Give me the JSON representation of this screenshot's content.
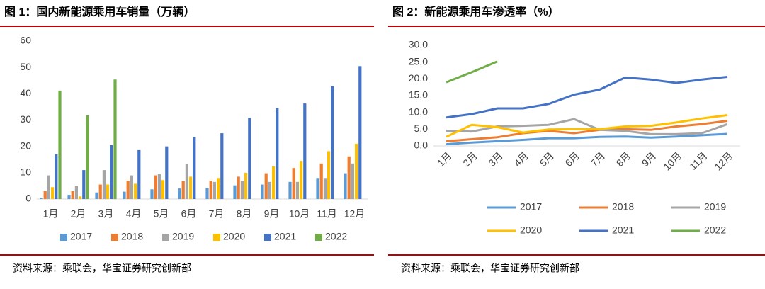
{
  "chart_data": [
    {
      "type": "bar",
      "title": "图 1：国内新能源乘用车销量（万辆）",
      "source": "资料来源：乘联会，华宝证券研究创新部",
      "categories": [
        "1月",
        "2月",
        "3月",
        "4月",
        "5月",
        "6月",
        "7月",
        "8月",
        "9月",
        "10月",
        "11月",
        "12月"
      ],
      "series": [
        {
          "name": "2017",
          "color": "#5b9bd5",
          "values": [
            0.5,
            1.6,
            2.5,
            2.8,
            3.7,
            4,
            4.2,
            5.2,
            5.5,
            6.5,
            8,
            9.8
          ]
        },
        {
          "name": "2018",
          "color": "#ed7d31",
          "values": [
            3,
            3,
            5.5,
            7,
            9,
            6.8,
            7,
            8.5,
            9.8,
            11.8,
            13.5,
            16.2
          ]
        },
        {
          "name": "2019",
          "color": "#a5a5a5",
          "values": [
            9,
            5,
            11,
            9,
            9.5,
            13.2,
            6.5,
            7,
            6.5,
            6.5,
            8,
            13.5
          ]
        },
        {
          "name": "2020",
          "color": "#ffc000",
          "values": [
            4.5,
            1,
            5.5,
            5.8,
            7.2,
            8.5,
            8,
            10,
            12.4,
            14.5,
            18.2,
            21
          ]
        },
        {
          "name": "2021",
          "color": "#4472c4",
          "values": [
            17,
            11,
            20.5,
            18.6,
            20,
            23.6,
            25,
            30.8,
            34.5,
            36.3,
            42.8,
            50.5
          ]
        },
        {
          "name": "2022",
          "color": "#70ad47",
          "values": [
            41.2,
            31.8,
            45.4,
            null,
            null,
            null,
            null,
            null,
            null,
            null,
            null,
            null
          ]
        }
      ],
      "ylim": [
        0,
        60
      ],
      "yticks": [
        0,
        10,
        20,
        30,
        40,
        50,
        60
      ],
      "grid": false,
      "legend": "bottom"
    },
    {
      "type": "line",
      "title": "图 2：新能源乘用车渗透率（%）",
      "source": "资料来源：乘联会，华宝证券研究创新部",
      "categories": [
        "1月",
        "2月",
        "3月",
        "4月",
        "5月",
        "6月",
        "7月",
        "8月",
        "9月",
        "10月",
        "11月",
        "12月"
      ],
      "series": [
        {
          "name": "2017",
          "color": "#5b9bd5",
          "values": [
            0.5,
            1,
            1.4,
            1.8,
            2.3,
            2.3,
            2.7,
            2.8,
            2.5,
            2.8,
            3.2,
            3.6
          ]
        },
        {
          "name": "2018",
          "color": "#ed7d31",
          "values": [
            1.4,
            2,
            2.6,
            3.8,
            4.5,
            3.8,
            4.8,
            5,
            4.8,
            5.8,
            6.5,
            7.5
          ]
        },
        {
          "name": "2019",
          "color": "#a5a5a5",
          "values": [
            4.5,
            4.3,
            5.8,
            6,
            6.3,
            8,
            4.8,
            4.5,
            3.5,
            3.5,
            3.8,
            6.5
          ]
        },
        {
          "name": "2020",
          "color": "#ffc000",
          "values": [
            2.7,
            6.3,
            5.6,
            4,
            4.9,
            5,
            5,
            5.8,
            6,
            7,
            8.2,
            9.2
          ]
        },
        {
          "name": "2021",
          "color": "#4472c4",
          "values": [
            8.5,
            9.5,
            11.2,
            11.2,
            12.5,
            15.3,
            16.8,
            20.4,
            19.8,
            18.8,
            19.8,
            20.6
          ]
        },
        {
          "name": "2022",
          "color": "#70ad47",
          "values": [
            19,
            22,
            25.2,
            null,
            null,
            null,
            null,
            null,
            null,
            null,
            null,
            null
          ]
        }
      ],
      "ylim": [
        0,
        30
      ],
      "yticks": [
        {
          "value": 0,
          "label": "0.0"
        },
        {
          "value": 5,
          "label": "5.0"
        },
        {
          "value": 10,
          "label": "10.0"
        },
        {
          "value": 15,
          "label": "15.0"
        },
        {
          "value": 20,
          "label": "20.0"
        },
        {
          "value": 25,
          "label": "25.0"
        },
        {
          "value": 30,
          "label": "30.0"
        }
      ],
      "grid": false,
      "legend": "bottom"
    }
  ]
}
